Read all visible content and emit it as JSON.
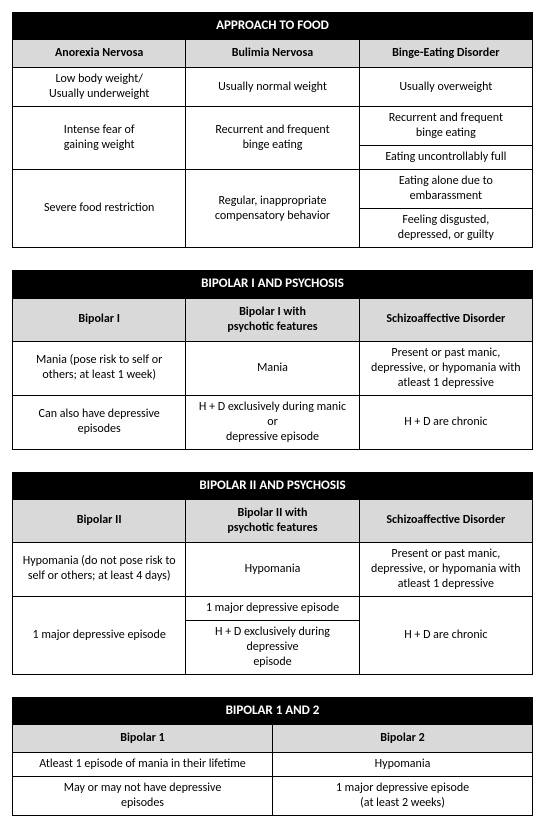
{
  "table1": {
    "title": "APPROACH TO FOOD",
    "headers": [
      "Anorexia Nervosa",
      "Bulimia Nervosa",
      "Binge-Eating Disorder"
    ],
    "r1c1": "Low body weight/\nUsually underweight",
    "r1c2": "Usually normal weight",
    "r1c3": "Usually overweight",
    "r2c1": "Intense fear of\ngaining weight",
    "r2c2": "Recurrent and frequent\nbinge eating",
    "r2c3a": "Recurrent and frequent\nbinge eating",
    "r2c3b": "Eating uncontrollably full",
    "r3c1": "Severe food restriction",
    "r3c2": "Regular, inappropriate\ncompensatory behavior",
    "r3c3a": "Eating alone due to\nembarassment",
    "r3c3b": "Feeling disgusted,\ndepressed, or guilty"
  },
  "table2": {
    "title": "BIPOLAR I AND PSYCHOSIS",
    "headers": [
      "Bipolar I",
      "Bipolar I with\npsychotic features",
      "Schizoaffective Disorder"
    ],
    "r1c1": "Mania (pose risk to self or\nothers; at least 1 week)",
    "r1c2": "Mania",
    "r1c3": "Present or past manic,\ndepressive, or hypomania with\natleast 1 depressive",
    "r2c1": "Can also have depressive\nepisodes",
    "r2c2": "H + D exclusively during manic or\ndepressive episode",
    "r2c3": "H + D are chronic"
  },
  "table3": {
    "title": "BIPOLAR II AND PSYCHOSIS",
    "headers": [
      "Bipolar II",
      "Bipolar II with\npsychotic features",
      "Schizoaffective Disorder"
    ],
    "r1c1": "Hypomania (do not pose risk to\nself or others; at least 4 days)",
    "r1c2": "Hypomania",
    "r1c3": "Present or past manic,\ndepressive, or hypomania with\natleast 1 depressive",
    "r2c1": "1 major depressive episode",
    "r2c2a": "1 major depressive episode",
    "r2c2b": "H + D exclusively during depressive\nepisode",
    "r2c3": "H + D are chronic"
  },
  "table4": {
    "title": "BIPOLAR 1 AND 2",
    "headers": [
      "Bipolar 1",
      "Bipolar 2"
    ],
    "r1c1": "Atleast 1 episode of mania in their lifetime",
    "r1c2": "Hypomania",
    "r2c1": "May or may not have depressive\nepisodes",
    "r2c2": "1 major depressive episode\n(at least 2 weeks)"
  }
}
